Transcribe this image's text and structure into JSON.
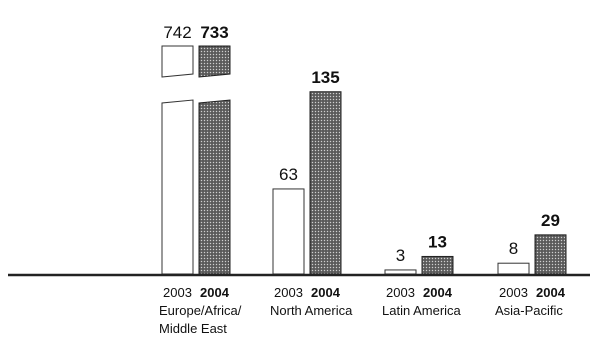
{
  "chart_data": {
    "type": "bar",
    "categories": [
      [
        "Europe/Africa/",
        "Middle East"
      ],
      [
        "North America"
      ],
      [
        "Latin America"
      ],
      [
        "Asia-Pacific"
      ]
    ],
    "series": [
      {
        "name": "2003",
        "values": [
          742,
          63,
          3,
          8
        ]
      },
      {
        "name": "2004",
        "values": [
          733,
          135,
          13,
          29
        ]
      }
    ],
    "axis_break": {
      "value": 233
    },
    "colors": {
      "series_2003": "#ffffff",
      "series_2004": "#555555",
      "axis": "#222222"
    }
  }
}
